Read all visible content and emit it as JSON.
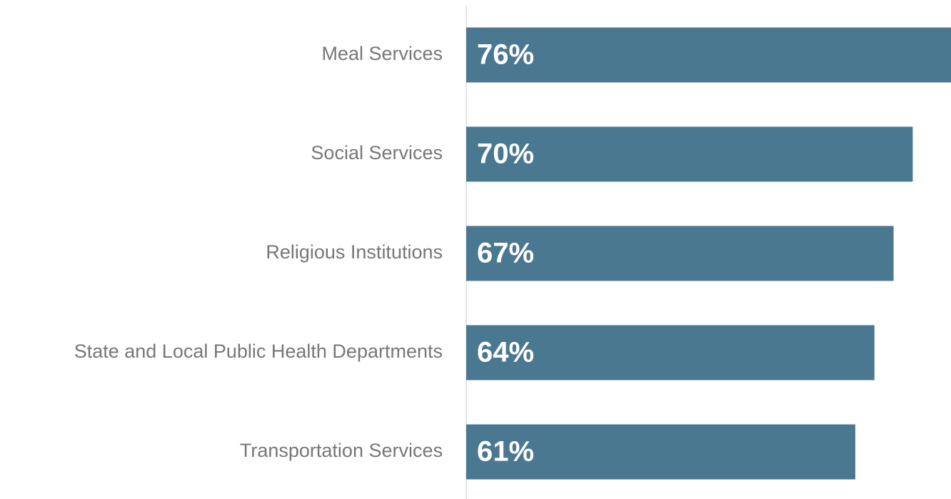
{
  "chart_data": {
    "type": "barh",
    "categories": [
      "Meal Services",
      "Social Services",
      "Religious Institutions",
      "State and Local Public Health Departments",
      "Transportation Services"
    ],
    "values": [
      76,
      70,
      67,
      64,
      61
    ],
    "value_labels": [
      "76%",
      "70%",
      "67%",
      "64%",
      "61%"
    ],
    "color": "#4a7890",
    "xlim": [
      0,
      76
    ]
  }
}
